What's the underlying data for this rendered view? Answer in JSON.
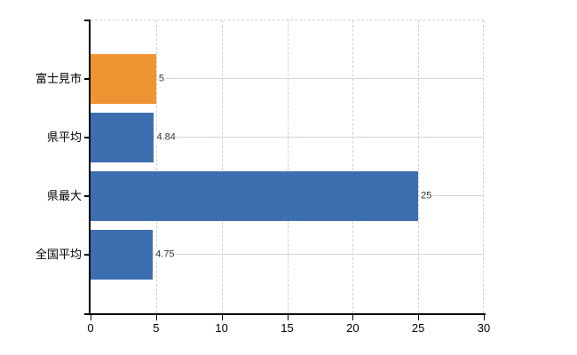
{
  "chart_data": {
    "type": "bar",
    "orientation": "horizontal",
    "title": "",
    "categories": [
      "富士見市",
      "県平均",
      "県最大",
      "全国平均"
    ],
    "values": [
      5,
      4.84,
      25,
      4.75
    ],
    "value_labels": [
      "5",
      "4.84",
      "25",
      "4.75"
    ],
    "bar_colors": [
      "#ef9433",
      "#3d6eb0",
      "#3d6eb0",
      "#3d6eb0"
    ],
    "highlight_color": "#ef9433",
    "default_color": "#3d6eb0",
    "xlim": [
      0,
      30
    ],
    "x_ticks": [
      "0",
      "5",
      "10",
      "15",
      "20",
      "25",
      "30"
    ],
    "grid": "on",
    "legend": "none",
    "axis_color": "#000000",
    "gridline_color": "#ccd2cc",
    "value_label_color": "#333333"
  }
}
